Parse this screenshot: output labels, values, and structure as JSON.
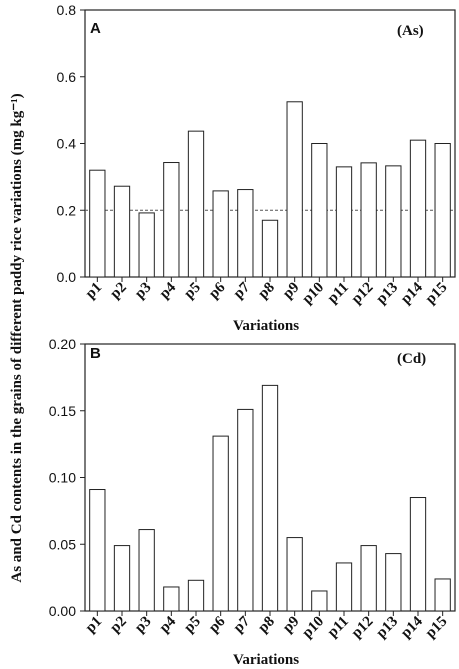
{
  "ylabel": "As and Cd contents in the grains of different paddy rice variations (mg kg⁻¹)",
  "chart_data": [
    {
      "type": "bar",
      "panel_label": "A",
      "element_label": "(As)",
      "categories": [
        "p1",
        "p2",
        "p3",
        "p4",
        "p5",
        "p6",
        "p7",
        "p8",
        "p9",
        "p10",
        "p11",
        "p12",
        "p13",
        "p14",
        "p15"
      ],
      "values": [
        0.32,
        0.272,
        0.192,
        0.343,
        0.437,
        0.258,
        0.262,
        0.17,
        0.525,
        0.4,
        0.33,
        0.342,
        0.333,
        0.41,
        0.4
      ],
      "xlabel": "Variations",
      "ylim": [
        0,
        0.8
      ],
      "yticks": [
        "0.0",
        "0.2",
        "0.4",
        "0.6",
        "0.8"
      ],
      "reference_line": 0.2
    },
    {
      "type": "bar",
      "panel_label": "B",
      "element_label": "(Cd)",
      "categories": [
        "p1",
        "p2",
        "p3",
        "p4",
        "p5",
        "p6",
        "p7",
        "p8",
        "p9",
        "p10",
        "p11",
        "p12",
        "p13",
        "p14",
        "p15"
      ],
      "values": [
        0.091,
        0.049,
        0.061,
        0.018,
        0.023,
        0.131,
        0.151,
        0.169,
        0.055,
        0.015,
        0.036,
        0.049,
        0.043,
        0.085,
        0.024
      ],
      "xlabel": "Variations",
      "ylim": [
        0,
        0.2
      ],
      "yticks": [
        "0.00",
        "0.05",
        "0.10",
        "0.15",
        "0.20"
      ]
    }
  ]
}
